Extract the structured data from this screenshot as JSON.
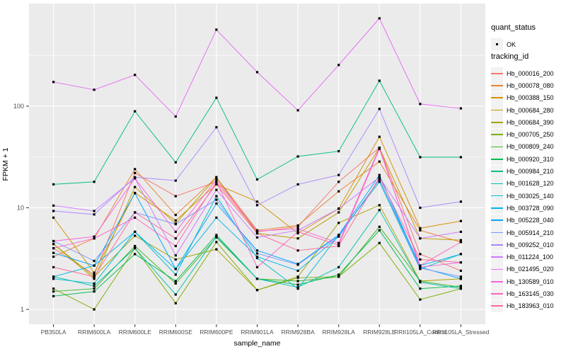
{
  "figure": {
    "background": "#FFFFFF",
    "panel_background": "#EBEBEB",
    "gridline_color": "#FFFFFF",
    "tick_label_color": "#4D4D4D",
    "y_axis_title": "FPKM + 1",
    "x_axis_title": "sample_name"
  },
  "legend": {
    "quant_status": {
      "title": "quant_status",
      "items": [
        {
          "label": "OK",
          "marker": "black-point"
        }
      ]
    },
    "tracking_id": {
      "title": "tracking_id"
    }
  },
  "chart_data": {
    "type": "line",
    "title": "",
    "xlabel": "sample_name",
    "ylabel": "FPKM + 1",
    "yscale": "log10",
    "ylim": [
      0.714,
      1023
    ],
    "y_major_ticks": [
      1,
      10,
      100
    ],
    "y_minor_gridlines": [
      3.162,
      31.62,
      316.2
    ],
    "grid": true,
    "legend_position": "right",
    "point_color": "#000000",
    "categories": [
      "PB350LA",
      "RRIM600LA",
      "RRIM600LE",
      "RRIM600SE",
      "RRIM600PE",
      "RRIM901LA",
      "RRIM928BA",
      "RRIM928LA",
      "RRIM928LE",
      "RRII105LA_Control",
      "RRII105LA_Stressed"
    ],
    "series": [
      {
        "name": "Hb_000016_200",
        "color": "#F8766D",
        "values": [
          4.0,
          2.2,
          22,
          13,
          18,
          5.8,
          6.5,
          18,
          39,
          3.5,
          2.4
        ]
      },
      {
        "name": "Hb_000078_080",
        "color": "#EB8335",
        "values": [
          3.3,
          5.0,
          24,
          8.5,
          20,
          6.0,
          6.7,
          14.5,
          28.5,
          6.0,
          4.6
        ]
      },
      {
        "name": "Hb_000388_150",
        "color": "#D89000",
        "values": [
          8.0,
          2.3,
          14,
          7.5,
          17,
          11.5,
          5.6,
          9.8,
          50,
          6.3,
          7.4
        ]
      },
      {
        "name": "Hb_000684_280",
        "color": "#BF9B00",
        "values": [
          4.4,
          2.0,
          16,
          7.0,
          20,
          5.6,
          5.0,
          9.0,
          39,
          5.0,
          4.8
        ]
      },
      {
        "name": "Hb_000684_390",
        "color": "#A3A500",
        "values": [
          4.4,
          2.1,
          5.3,
          3.1,
          3.9,
          1.55,
          2.1,
          7.1,
          10.6,
          1.9,
          2.0
        ]
      },
      {
        "name": "Hb_000705_250",
        "color": "#7CAE00",
        "values": [
          1.6,
          1.0,
          4.0,
          1.15,
          4.6,
          1.55,
          2.05,
          2.1,
          4.5,
          1.25,
          1.6
        ]
      },
      {
        "name": "Hb_000809_240",
        "color": "#43B425",
        "values": [
          1.5,
          1.6,
          4.2,
          1.8,
          5.1,
          2.0,
          1.9,
          2.1,
          6.5,
          1.9,
          1.65
        ]
      },
      {
        "name": "Hb_000920_310",
        "color": "#00BC51",
        "values": [
          1.35,
          1.5,
          3.5,
          1.9,
          5.4,
          2.0,
          1.75,
          2.2,
          6.0,
          1.6,
          1.7
        ]
      },
      {
        "name": "Hb_000984_210",
        "color": "#00C087",
        "values": [
          17,
          18,
          89,
          28,
          121,
          19,
          32,
          36,
          178,
          31.5,
          31.5
        ]
      },
      {
        "name": "Hb_001628_120",
        "color": "#00C0AF",
        "values": [
          2.1,
          1.7,
          4.0,
          1.4,
          5.2,
          2.0,
          1.65,
          2.6,
          9.5,
          1.85,
          1.6
        ]
      },
      {
        "name": "Hb_003025_140",
        "color": "#00BDD0",
        "values": [
          2.0,
          1.8,
          5.8,
          2.2,
          13,
          3.2,
          1.6,
          5.4,
          18,
          2.5,
          3.5
        ]
      },
      {
        "name": "Hb_003728_090",
        "color": "#00B5EC",
        "values": [
          2.1,
          2.7,
          5.8,
          2.5,
          8.0,
          3.3,
          2.4,
          5.2,
          19,
          2.7,
          3.5
        ]
      },
      {
        "name": "Hb_005228_040",
        "color": "#00A7FF",
        "values": [
          3.6,
          2.7,
          13.9,
          2.5,
          11,
          3.8,
          2.8,
          5.4,
          21,
          2.6,
          2.0
        ]
      },
      {
        "name": "Hb_005914_210",
        "color": "#7997FF",
        "values": [
          4.7,
          3.0,
          9.0,
          6.9,
          12,
          3.55,
          2.75,
          5.3,
          19,
          2.55,
          2.1
        ]
      },
      {
        "name": "Hb_009252_010",
        "color": "#AC88FF",
        "values": [
          9.3,
          8.6,
          20,
          18.5,
          62,
          10.6,
          17,
          21,
          94,
          10,
          11.5
        ]
      },
      {
        "name": "Hb_011224_100",
        "color": "#CF78FF",
        "values": [
          10.5,
          9.3,
          19.5,
          3.4,
          15,
          5.1,
          6.0,
          9.8,
          20,
          5.0,
          5.8
        ]
      },
      {
        "name": "Hb_021495_020",
        "color": "#E76BF3",
        "values": [
          173,
          145,
          203,
          79,
          566,
          216,
          91,
          254,
          731,
          105,
          95
        ]
      },
      {
        "name": "Hb_130589_010",
        "color": "#F763DF",
        "values": [
          4.7,
          5.2,
          19.5,
          5.8,
          19,
          5.9,
          6.2,
          4.5,
          39,
          2.6,
          2.9
        ]
      },
      {
        "name": "Hb_163145_030",
        "color": "#FF62BF",
        "values": [
          4.0,
          5.0,
          8.0,
          4.2,
          18,
          2.6,
          5.8,
          4.3,
          38,
          2.7,
          4.6
        ]
      },
      {
        "name": "Hb_183963_010",
        "color": "#FF6A9A",
        "values": [
          2.6,
          2.1,
          9.0,
          5.0,
          17,
          5.6,
          3.8,
          4.2,
          20,
          3.1,
          2.9
        ]
      }
    ]
  }
}
